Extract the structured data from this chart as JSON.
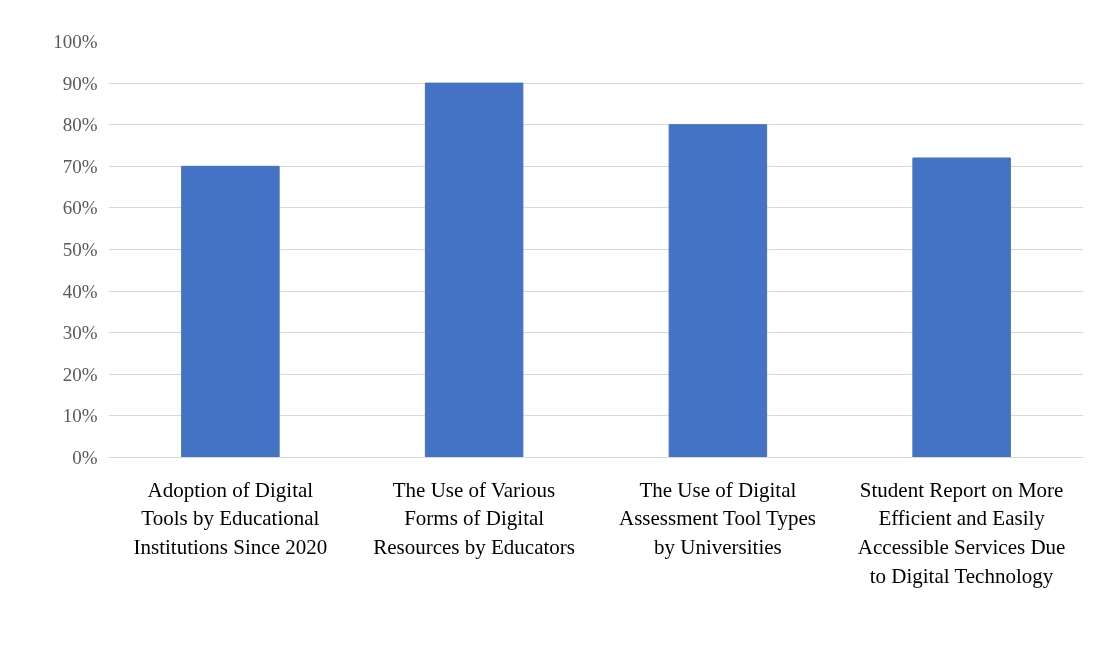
{
  "chart_data": {
    "type": "bar",
    "categories": [
      "Adoption of Digital Tools by Educational Institutions Since 2020",
      "The Use of Various Forms of Digital Resources by Educators",
      "The Use of Digital Assessment Tool Types by Universities",
      "Student Report on More Efficient and Easily Accessible Services Due to Digital Technology"
    ],
    "values": [
      70,
      90,
      80,
      72
    ],
    "color": "#4472c4",
    "ylim": [
      0,
      100
    ],
    "yticks": [
      {
        "value": 0,
        "label": "0%"
      },
      {
        "value": 10,
        "label": "10%"
      },
      {
        "value": 20,
        "label": "20%"
      },
      {
        "value": 30,
        "label": "30%"
      },
      {
        "value": 40,
        "label": "40%"
      },
      {
        "value": 50,
        "label": "50%"
      },
      {
        "value": 60,
        "label": "60%"
      },
      {
        "value": 70,
        "label": "70%"
      },
      {
        "value": 80,
        "label": "80%"
      },
      {
        "value": 90,
        "label": "90%"
      },
      {
        "value": 100,
        "label": "100%"
      }
    ],
    "grid": "y"
  }
}
